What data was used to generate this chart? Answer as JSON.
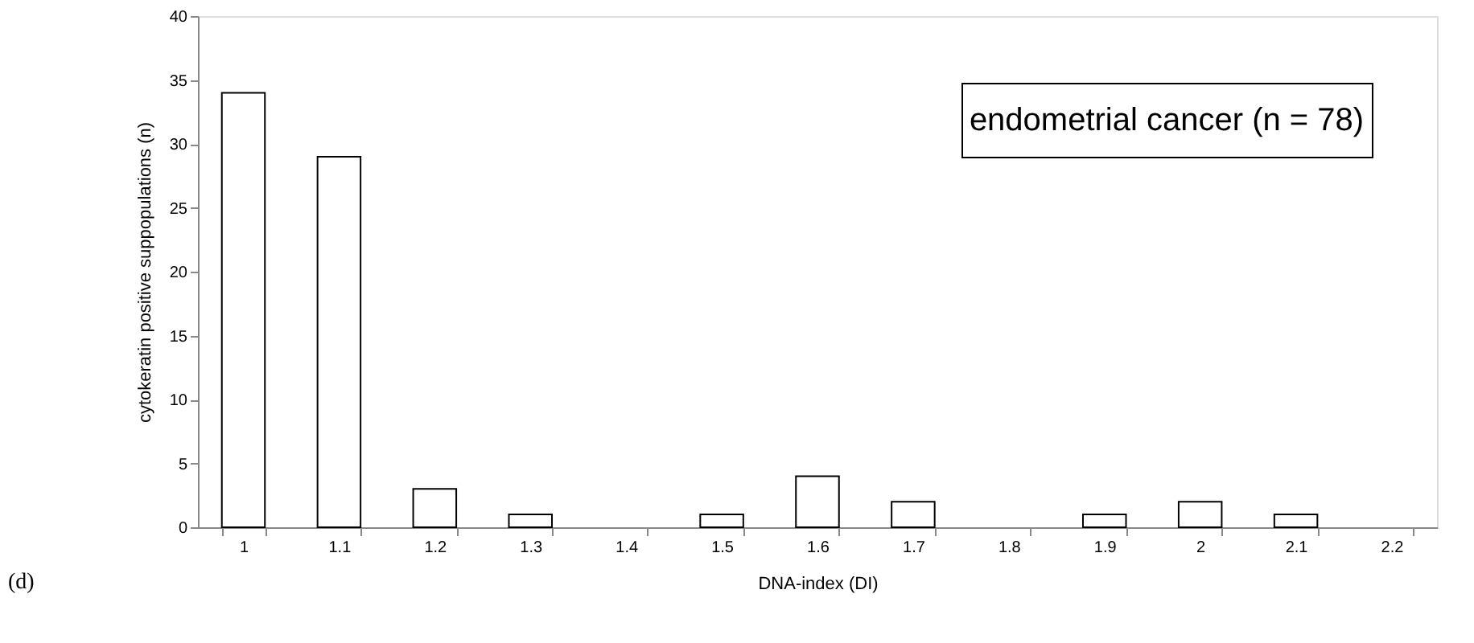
{
  "chart_data": {
    "type": "bar",
    "xlabel": "DNA-index (DI)",
    "ylabel": "cytokeratin positive suppopulations (n)",
    "categories": [
      "1",
      "1.1",
      "1.2",
      "1.3",
      "1.4",
      "1.5",
      "1.6",
      "1.7",
      "1.8",
      "1.9",
      "2",
      "2.1",
      "2.2"
    ],
    "values": [
      34,
      29,
      3,
      1,
      0,
      1,
      4,
      2,
      0,
      1,
      2,
      1,
      0
    ],
    "color": "#ffffff",
    "ylim": [
      0,
      40
    ],
    "yticks": [
      0,
      5,
      10,
      15,
      20,
      25,
      30,
      35,
      40
    ],
    "grid": false,
    "annotations": [
      "endometrial cancer (n = 78)",
      "(d)"
    ]
  }
}
